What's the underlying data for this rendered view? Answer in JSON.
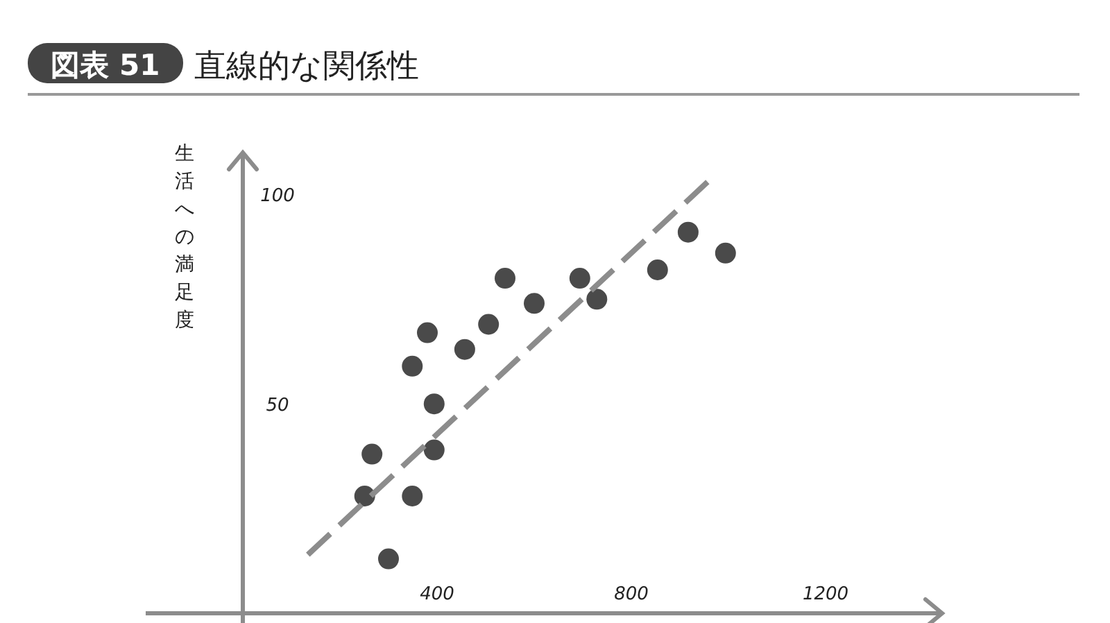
{
  "chart_data": {
    "type": "scatter",
    "subtitle": "図表 51",
    "title": "直線的な関係性",
    "ylabel": "生活への満足度",
    "xlim": [
      -200,
      1440
    ],
    "ylim": [
      0,
      110
    ],
    "xticks": [
      400,
      800,
      1200
    ],
    "yticks": [
      50,
      100
    ],
    "grid": false,
    "series": [
      {
        "marker": "circle",
        "color": "#4a4a4a",
        "x": [
          300,
          251,
          266,
          349,
          349,
          380,
          394,
          394,
          457,
          506,
          540,
          600,
          694,
          729,
          854,
          917,
          994
        ],
        "values": [
          13,
          28,
          38,
          28,
          59,
          67,
          50,
          39,
          63,
          69,
          80,
          74,
          80,
          75,
          82,
          91,
          86
        ]
      },
      {
        "type": "line",
        "color": "#8c8c8c",
        "line_style": "dashed",
        "x": [
          134,
          957
        ],
        "values": [
          14,
          103
        ]
      }
    ]
  }
}
